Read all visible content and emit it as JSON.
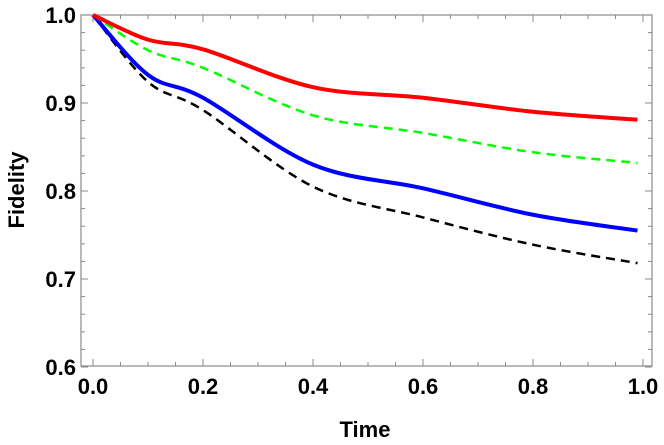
{
  "chart_data": {
    "type": "line",
    "title": "",
    "xlabel": "Time",
    "ylabel": "Fidelity",
    "xlim": [
      0.0,
      1.0
    ],
    "ylim": [
      0.6,
      1.0
    ],
    "grid": false,
    "legend": null,
    "x_ticks": [
      "0.0",
      "0.2",
      "0.4",
      "0.6",
      "0.8",
      "1.0"
    ],
    "y_ticks": [
      "0.6",
      "0.7",
      "0.8",
      "0.9",
      "1.0"
    ],
    "x": [
      0.0,
      0.1,
      0.2,
      0.4,
      0.6,
      0.8,
      0.99
    ],
    "series": [
      {
        "name": "red-solid",
        "color": "#ff0000",
        "style": "solid",
        "values": [
          1.0,
          0.972,
          0.961,
          0.918,
          0.906,
          0.89,
          0.881
        ]
      },
      {
        "name": "green-dashed",
        "color": "#00ff00",
        "style": "dashed",
        "values": [
          1.0,
          0.96,
          0.94,
          0.886,
          0.866,
          0.844,
          0.832
        ]
      },
      {
        "name": "blue-solid",
        "color": "#0000ff",
        "style": "solid",
        "values": [
          1.0,
          0.932,
          0.906,
          0.83,
          0.803,
          0.773,
          0.755
        ]
      },
      {
        "name": "black-dashed",
        "color": "#000000",
        "style": "dashed",
        "values": [
          1.0,
          0.924,
          0.892,
          0.805,
          0.77,
          0.739,
          0.718
        ]
      }
    ]
  }
}
